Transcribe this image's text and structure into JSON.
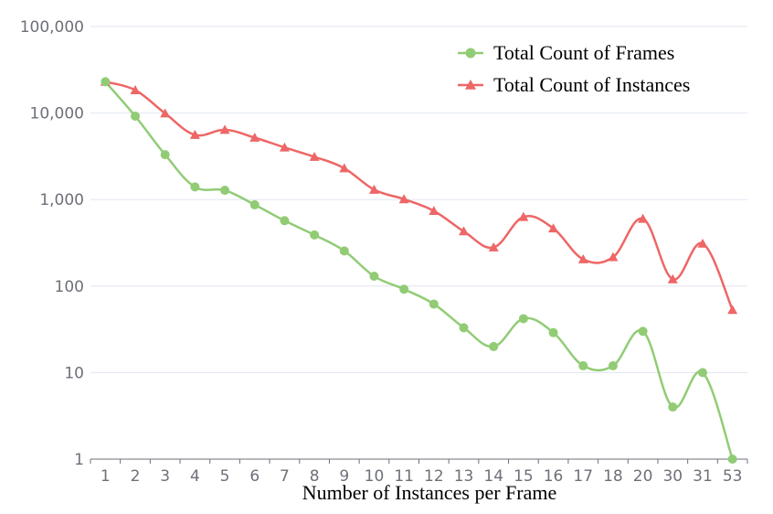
{
  "chart_data": {
    "type": "line",
    "xlabel": "Number of Instances per Frame",
    "ylabel": "",
    "yscale": "log",
    "ylim": [
      1,
      100000
    ],
    "grid": true,
    "legend_position": "top-right",
    "categories": [
      "1",
      "2",
      "3",
      "4",
      "5",
      "6",
      "7",
      "8",
      "9",
      "10",
      "11",
      "12",
      "13",
      "14",
      "15",
      "16",
      "17",
      "18",
      "20",
      "30",
      "31",
      "53"
    ],
    "y_tick_labels": [
      "1",
      "10",
      "100",
      "1,000",
      "10,000",
      "100,000"
    ],
    "y_tick_values": [
      1,
      10,
      100,
      1000,
      10000,
      100000
    ],
    "series": [
      {
        "name": "Total Count of Frames",
        "color": "#91cc75",
        "marker": "circle",
        "values": [
          23000,
          9200,
          3300,
          1400,
          1280,
          870,
          570,
          390,
          255,
          130,
          92,
          62,
          33,
          20,
          42,
          29,
          12,
          12,
          30,
          4,
          10,
          1
        ]
      },
      {
        "name": "Total Count of Instances",
        "color": "#ee6666",
        "marker": "triangle",
        "values": [
          23000,
          18400,
          9900,
          5600,
          6400,
          5200,
          4000,
          3120,
          2300,
          1300,
          1010,
          740,
          430,
          280,
          630,
          464,
          204,
          216,
          600,
          120,
          310,
          53
        ]
      }
    ]
  }
}
